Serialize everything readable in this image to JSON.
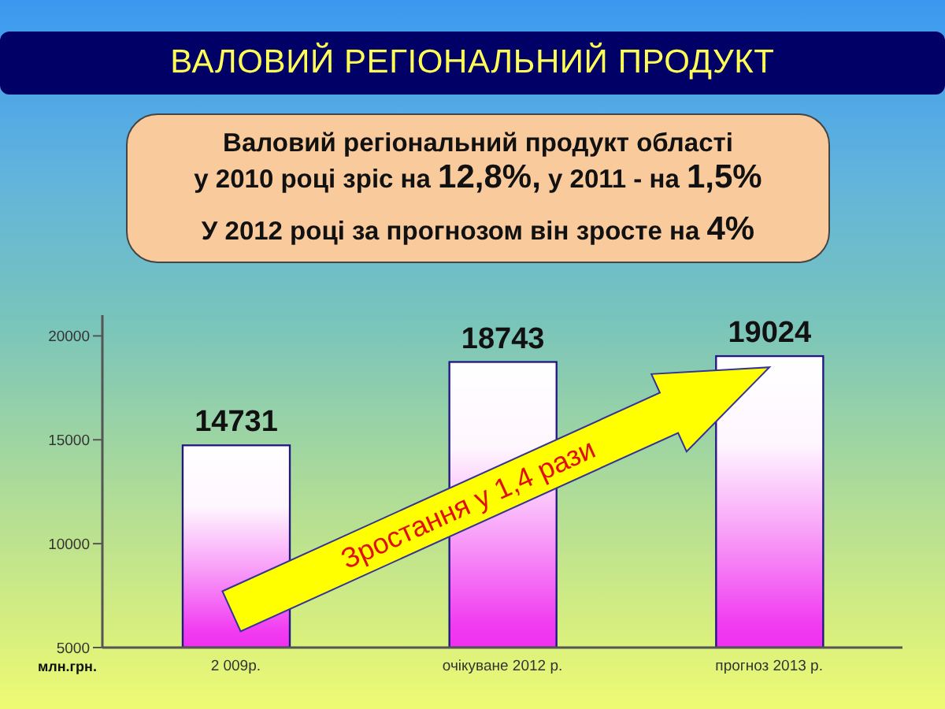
{
  "chart_data": {
    "type": "bar",
    "title": "ВАЛОВИЙ РЕГІОНАЛЬНИЙ ПРОДУКТ",
    "ylabel": "млн.грн.",
    "categories": [
      "2 009р.",
      "очікуване 2012 р.",
      "прогноз 2013 р."
    ],
    "values": [
      14731,
      18743,
      19024
    ],
    "color": "#f030f0",
    "ylim": [
      5000,
      21000
    ],
    "yticks": [
      5000,
      10000,
      15000,
      20000
    ],
    "data_labels": true,
    "annotations": [
      "Валовий регіональний продукт області",
      "у 2010 році зріс на 12,8%, у 2011 - на 1,5%",
      "У 2012 році за прогнозом він зросте на 4%",
      "Зростання у 1,4 рази"
    ]
  }
}
